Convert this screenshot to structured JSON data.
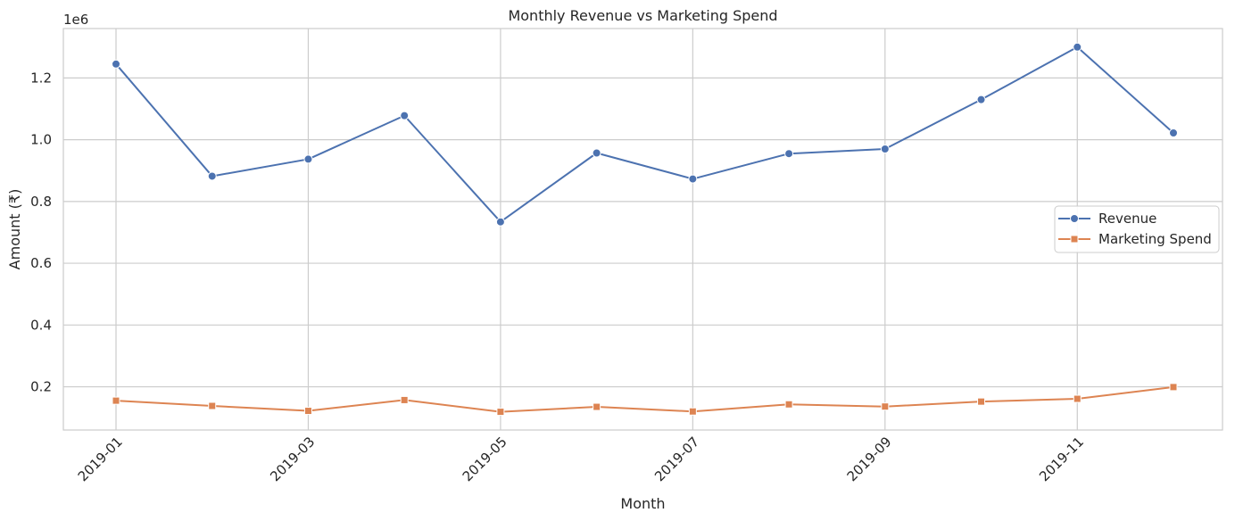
{
  "chart_data": {
    "type": "line",
    "title": "Monthly Revenue vs Marketing Spend",
    "xlabel": "Month",
    "ylabel": "Amount (₹)",
    "y_multiplier_label": "1e6",
    "x": [
      "2019-01",
      "2019-02",
      "2019-03",
      "2019-04",
      "2019-05",
      "2019-06",
      "2019-07",
      "2019-08",
      "2019-09",
      "2019-10",
      "2019-11",
      "2019-12"
    ],
    "x_tick_labels": [
      "2019-01",
      "2019-03",
      "2019-05",
      "2019-07",
      "2019-09",
      "2019-11"
    ],
    "y_ticks": [
      0.2,
      0.4,
      0.6,
      0.8,
      1.0,
      1.2
    ],
    "y_tick_labels": [
      "0.2",
      "0.4",
      "0.6",
      "0.8",
      "1.0",
      "1.2"
    ],
    "ylim": [
      0.06,
      1.36
    ],
    "grid": true,
    "legend_position": "center-right",
    "series": [
      {
        "name": "Revenue",
        "color": "#4c72b0",
        "marker": "circle",
        "values": [
          1.245,
          0.882,
          0.937,
          1.078,
          0.734,
          0.957,
          0.873,
          0.955,
          0.97,
          1.13,
          1.3,
          1.022
        ]
      },
      {
        "name": "Marketing Spend",
        "color": "#dd8452",
        "marker": "square",
        "values": [
          0.155,
          0.138,
          0.122,
          0.157,
          0.119,
          0.135,
          0.12,
          0.143,
          0.136,
          0.152,
          0.161,
          0.199
        ]
      }
    ]
  }
}
